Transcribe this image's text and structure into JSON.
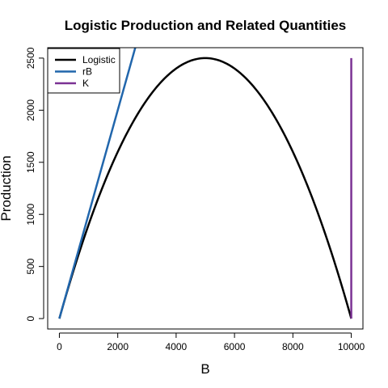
{
  "chart_data": {
    "type": "line",
    "title": "Logistic Production and Related Quantities",
    "xlabel": "B",
    "ylabel": "Production",
    "xlim": [
      0,
      10000
    ],
    "ylim": [
      0,
      2500
    ],
    "x_ticks": [
      0,
      2000,
      4000,
      6000,
      8000,
      10000
    ],
    "y_ticks": [
      0,
      500,
      1000,
      1500,
      2000,
      2500
    ],
    "grid": false,
    "legend_position": "top-left",
    "series": [
      {
        "name": "Logistic",
        "color": "#000000",
        "x": [
          0,
          500,
          1000,
          1500,
          2000,
          2500,
          3000,
          3500,
          4000,
          4500,
          5000,
          5500,
          6000,
          6500,
          7000,
          7500,
          8000,
          8500,
          9000,
          9500,
          10000
        ],
        "y": [
          0,
          475,
          900,
          1275,
          1600,
          1875,
          2100,
          2275,
          2400,
          2475,
          2500,
          2475,
          2400,
          2275,
          2100,
          1875,
          1600,
          1275,
          900,
          475,
          0
        ]
      },
      {
        "name": "rB",
        "color": "#2166ac",
        "x": [
          0,
          2650
        ],
        "y": [
          0,
          2650
        ]
      },
      {
        "name": "K",
        "color": "#7b3294",
        "x": [
          10000,
          10000
        ],
        "y": [
          0,
          2500
        ]
      }
    ]
  }
}
